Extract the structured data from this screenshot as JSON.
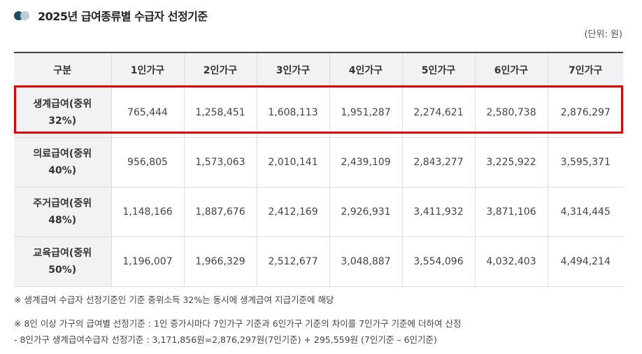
{
  "title": "2025년 급여종류별 수급자 선정기준",
  "unit": "(단위: 원)",
  "table": {
    "header": {
      "category": "구분",
      "columns": [
        "1인가구",
        "2인가구",
        "3인가구",
        "4인가구",
        "5인가구",
        "6인가구",
        "7인가구"
      ]
    },
    "rows": [
      {
        "label_line1": "생계급여(중위",
        "label_line2": "32%)",
        "values": [
          "765,444",
          "1,258,451",
          "1,608,113",
          "1,951,287",
          "2,274,621",
          "2,580,738",
          "2,876,297"
        ]
      },
      {
        "label_line1": "의료급여(중위",
        "label_line2": "40%)",
        "values": [
          "956,805",
          "1,573,063",
          "2,010,141",
          "2,439,109",
          "2,843,277",
          "3,225,922",
          "3,595,371"
        ]
      },
      {
        "label_line1": "주거급여(중위",
        "label_line2": "48%)",
        "values": [
          "1,148,166",
          "1,887,676",
          "2,412,169",
          "2,926,931",
          "3,411,932",
          "3,871,106",
          "4,314,445"
        ]
      },
      {
        "label_line1": "교육급여(중위",
        "label_line2": "50%)",
        "values": [
          "1,196,007",
          "1,966,329",
          "2,512,677",
          "3,048,887",
          "3,554,096",
          "4,032,403",
          "4,494,214"
        ]
      }
    ]
  },
  "highlight_color": "#e00000",
  "notes": {
    "note1": "※ 생계급여 수급자 선정기준인 기준 중위소득 32%는 동시에 생계급여 지급기준에 해당",
    "note2": "※ 8인 이상 가구의 급여별 선정기준 : 1인 증가시마다 7인가구 기준과 6인가구 기준의 차이를 7인가구 기준에 더하여 산정",
    "note3": "- 8인가구 생계급여수급자 선정기준 : 3,171,856원=2,876,297원(7인기준) + 295,559원 (7인기준 – 6인기준)"
  }
}
